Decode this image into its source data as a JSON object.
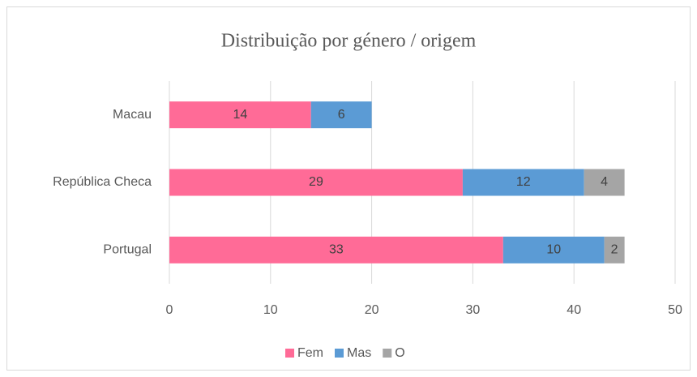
{
  "chart_data": {
    "type": "stacked-bar-horizontal",
    "title": "Distribuição por género / origem",
    "categories": [
      "Macau",
      "República Checa",
      "Portugal"
    ],
    "series": [
      {
        "name": "Fem",
        "color": "#ff6b97",
        "values": [
          14,
          29,
          33
        ]
      },
      {
        "name": "Mas",
        "color": "#5b9bd5",
        "values": [
          6,
          12,
          10
        ]
      },
      {
        "name": "O",
        "color": "#a5a5a5",
        "values": [
          null,
          4,
          2
        ]
      }
    ],
    "xlim": [
      0,
      50
    ],
    "xticks": [
      0,
      10,
      20,
      30,
      40,
      50
    ],
    "grid": true,
    "legend": "bottom"
  }
}
